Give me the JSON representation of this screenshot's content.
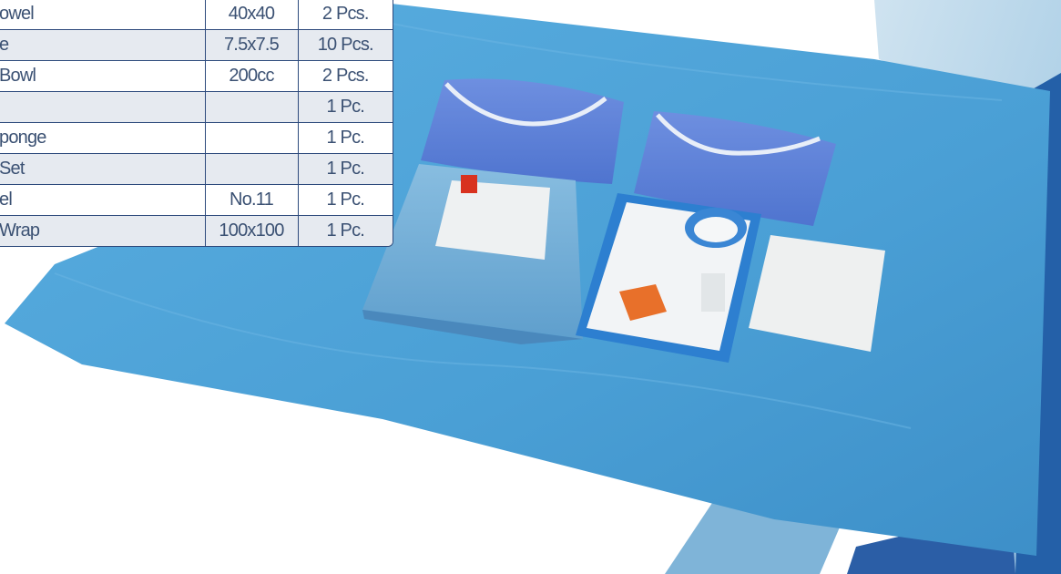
{
  "components_table": {
    "rows": [
      {
        "name": "",
        "size": "",
        "qty": ""
      },
      {
        "name": "owel",
        "size": "40x40",
        "qty": "2 Pcs."
      },
      {
        "name": "e",
        "size": "7.5x7.5",
        "qty": "10 Pcs."
      },
      {
        "name": "Bowl",
        "size": "200cc",
        "qty": "2 Pcs."
      },
      {
        "name": "",
        "size": "",
        "qty": "1 Pc."
      },
      {
        "name": "ponge",
        "size": "",
        "qty": "1 Pc."
      },
      {
        "name": "Set",
        "size": "",
        "qty": "1 Pc."
      },
      {
        "name": "el",
        "size": "No.11",
        "qty": "1 Pc."
      },
      {
        "name": "Wrap",
        "size": "100x100",
        "qty": "1 Pc."
      }
    ]
  },
  "colors": {
    "table_border": "#2d4a7c",
    "table_text": "#3b5173",
    "row_alt": "#e6eaf0",
    "drape_blue": "#4a9fd5",
    "gown_blue": "#5b7fd6"
  }
}
